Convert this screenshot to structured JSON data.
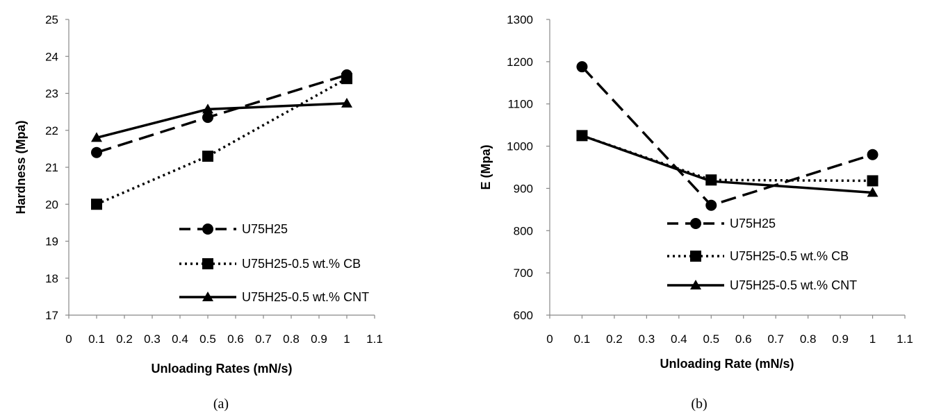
{
  "chart_data": [
    {
      "type": "line",
      "caption": "(a)",
      "xlabel": "Unloading Rates (mN/s)",
      "ylabel": "Hardness (Mpa)",
      "xlim": [
        0,
        1.1
      ],
      "ylim": [
        17,
        25
      ],
      "x_ticks": [
        "0",
        "0.1",
        "0.2",
        "0.3",
        "0.4",
        "0.5",
        "0.6",
        "0.7",
        "0.8",
        "0.9",
        "1",
        "1.1"
      ],
      "y_ticks": [
        "17",
        "18",
        "19",
        "20",
        "21",
        "22",
        "23",
        "24",
        "25"
      ],
      "grid": false,
      "legend_position": "bottom-right",
      "x": [
        0.1,
        0.5,
        1
      ],
      "series": [
        {
          "name": "U75H25",
          "marker": "circle",
          "dash": "dashed",
          "values": [
            21.4,
            22.35,
            23.5
          ]
        },
        {
          "name": "U75H25-0.5 wt.% CB",
          "marker": "square",
          "dash": "dotted",
          "values": [
            20.0,
            21.3,
            23.4
          ]
        },
        {
          "name": "U75H25-0.5 wt.% CNT",
          "marker": "triangle",
          "dash": "solid",
          "values": [
            21.8,
            22.57,
            22.73
          ]
        }
      ]
    },
    {
      "type": "line",
      "caption": "(b)",
      "xlabel": "Unloading Rate (mN/s)",
      "ylabel": "E (Mpa)",
      "xlim": [
        0,
        1.1
      ],
      "ylim": [
        600,
        1300
      ],
      "x_ticks": [
        "0",
        "0.1",
        "0.2",
        "0.3",
        "0.4",
        "0.5",
        "0.6",
        "0.7",
        "0.8",
        "0.9",
        "1",
        "1.1"
      ],
      "y_ticks": [
        "600",
        "700",
        "800",
        "900",
        "1000",
        "1100",
        "1200",
        "1300"
      ],
      "grid": false,
      "legend_position": "bottom-right",
      "x": [
        0.1,
        0.5,
        1
      ],
      "series": [
        {
          "name": "U75H25",
          "marker": "circle",
          "dash": "dashed",
          "values": [
            1188,
            860,
            980
          ]
        },
        {
          "name": "U75H25-0.5 wt.% CB",
          "marker": "square",
          "dash": "dotted",
          "values": [
            1025,
            920,
            918
          ]
        },
        {
          "name": "U75H25-0.5 wt.% CNT",
          "marker": "triangle",
          "dash": "solid",
          "values": [
            1025,
            917,
            890
          ]
        }
      ]
    }
  ]
}
